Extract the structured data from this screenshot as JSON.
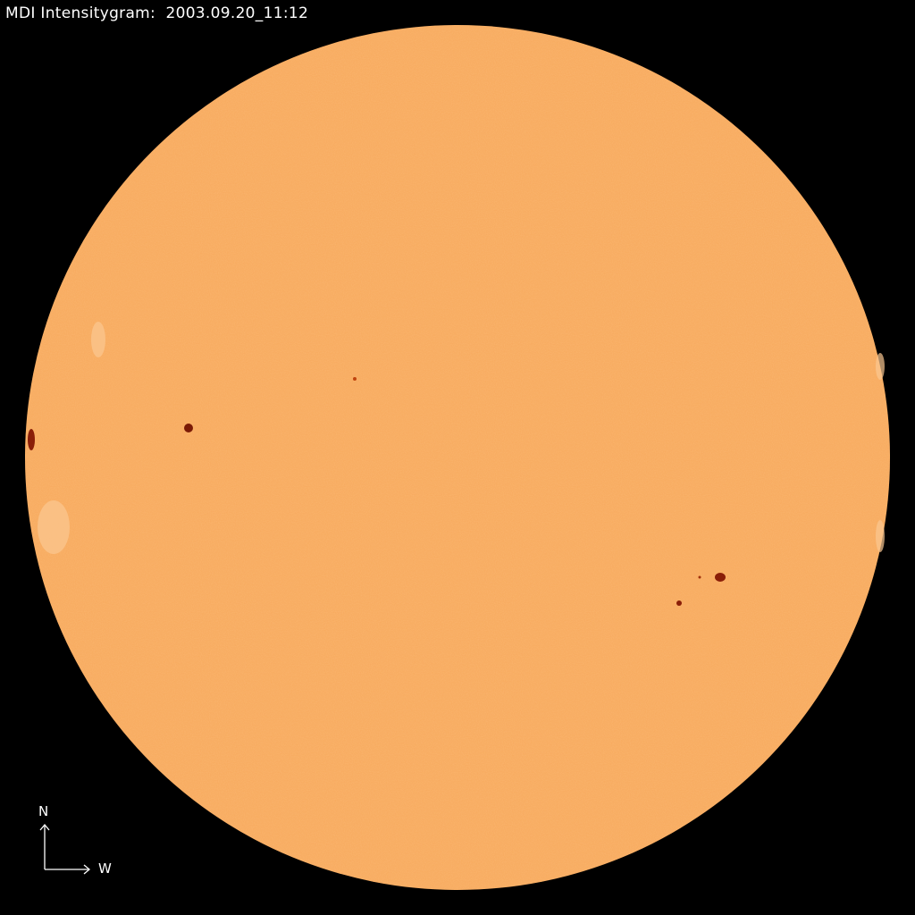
{
  "title": "MDI Intensitygram:  2003.09.20_11:12",
  "compass": {
    "north": "N",
    "west": "W"
  },
  "colors": {
    "background": "#000000",
    "disc": "#f8a95c",
    "sunspot": "#8a1e08",
    "text": "#ffffff"
  }
}
